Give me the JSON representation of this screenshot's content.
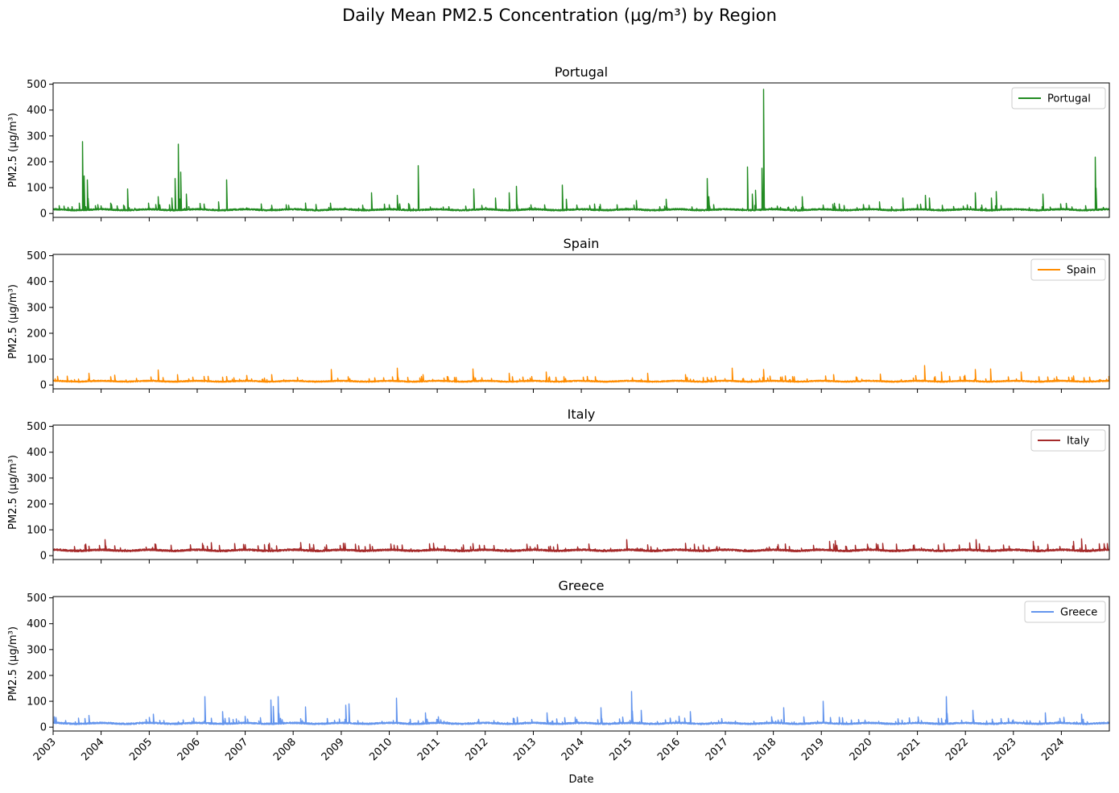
{
  "figure_title": "Daily Mean PM2.5 Concentration (µg/m³) by Region",
  "chart_data": {
    "type": "line",
    "title": "Daily Mean PM2.5 Concentration (µg/m³) by Region",
    "xlabel": "Date",
    "ylabel": "PM2.5 (µg/m³)",
    "xlim": [
      "2003-01-01",
      "2024-12-31"
    ],
    "ylim": [
      -15,
      505
    ],
    "yticks": [
      0,
      100,
      200,
      300,
      400,
      500
    ],
    "xticks": [
      "2003",
      "2004",
      "2005",
      "2006",
      "2007",
      "2008",
      "2009",
      "2010",
      "2011",
      "2012",
      "2013",
      "2014",
      "2015",
      "2016",
      "2017",
      "2018",
      "2019",
      "2020",
      "2021",
      "2022",
      "2023",
      "2024"
    ],
    "sharex": true,
    "legend_position": "upper right",
    "grid": false,
    "panels": [
      {
        "title": "Portugal",
        "legend": "Portugal",
        "color": "#228b22",
        "baseline": 14,
        "noise": 6,
        "peaks": [
          [
            "2003-07-20",
            40
          ],
          [
            "2003-08-10",
            278
          ],
          [
            "2003-08-25",
            145
          ],
          [
            "2003-09-20",
            130
          ],
          [
            "2004-03-15",
            40
          ],
          [
            "2004-07-20",
            95
          ],
          [
            "2005-03-10",
            65
          ],
          [
            "2005-06-20",
            60
          ],
          [
            "2005-07-15",
            135
          ],
          [
            "2005-08-08",
            268
          ],
          [
            "2005-08-25",
            160
          ],
          [
            "2005-10-10",
            75
          ],
          [
            "2006-06-10",
            45
          ],
          [
            "2006-08-10",
            130
          ],
          [
            "2008-10-10",
            40
          ],
          [
            "2009-08-20",
            80
          ],
          [
            "2010-03-05",
            70
          ],
          [
            "2010-08-10",
            185
          ],
          [
            "2011-10-05",
            95
          ],
          [
            "2012-03-20",
            60
          ],
          [
            "2012-07-01",
            80
          ],
          [
            "2012-08-25",
            105
          ],
          [
            "2013-08-10",
            110
          ],
          [
            "2013-09-10",
            55
          ],
          [
            "2015-02-20",
            50
          ],
          [
            "2015-10-10",
            55
          ],
          [
            "2016-08-15",
            135
          ],
          [
            "2016-08-30",
            65
          ],
          [
            "2017-06-18",
            180
          ],
          [
            "2017-07-25",
            75
          ],
          [
            "2017-08-15",
            90
          ],
          [
            "2017-10-16",
            480
          ],
          [
            "2017-10-05",
            175
          ],
          [
            "2018-08-05",
            65
          ],
          [
            "2020-03-20",
            45
          ],
          [
            "2020-09-10",
            60
          ],
          [
            "2021-03-01",
            70
          ],
          [
            "2021-04-01",
            60
          ],
          [
            "2022-03-15",
            80
          ],
          [
            "2022-07-15",
            60
          ],
          [
            "2022-08-20",
            85
          ],
          [
            "2023-08-10",
            75
          ],
          [
            "2024-09-16",
            218
          ]
        ]
      },
      {
        "title": "Spain",
        "legend": "Spain",
        "color": "#ff8c00",
        "baseline": 14,
        "noise": 5,
        "peaks": [
          [
            "2003-10-01",
            45
          ],
          [
            "2004-04-10",
            38
          ],
          [
            "2005-03-10",
            58
          ],
          [
            "2005-08-01",
            40
          ],
          [
            "2006-07-15",
            30
          ],
          [
            "2007-07-20",
            40
          ],
          [
            "2008-10-15",
            60
          ],
          [
            "2010-03-05",
            65
          ],
          [
            "2010-09-15",
            40
          ],
          [
            "2011-10-01",
            62
          ],
          [
            "2012-07-01",
            45
          ],
          [
            "2013-04-10",
            50
          ],
          [
            "2015-05-20",
            45
          ],
          [
            "2016-03-01",
            40
          ],
          [
            "2017-02-20",
            65
          ],
          [
            "2017-10-16",
            60
          ],
          [
            "2018-04-01",
            35
          ],
          [
            "2019-04-01",
            40
          ],
          [
            "2020-03-25",
            42
          ],
          [
            "2021-02-25",
            75
          ],
          [
            "2021-07-01",
            50
          ],
          [
            "2022-03-15",
            60
          ],
          [
            "2022-07-10",
            62
          ],
          [
            "2023-03-01",
            50
          ],
          [
            "2024-04-01",
            35
          ]
        ]
      },
      {
        "title": "Italy",
        "legend": "Italy",
        "color": "#a52a2a",
        "baseline": 20,
        "noise": 7,
        "peaks": [
          [
            "2004-02-01",
            62
          ],
          [
            "2005-02-10",
            45
          ],
          [
            "2006-04-15",
            50
          ],
          [
            "2007-07-01",
            48
          ],
          [
            "2008-05-01",
            45
          ],
          [
            "2009-01-15",
            48
          ],
          [
            "2010-01-15",
            45
          ],
          [
            "2010-12-01",
            48
          ],
          [
            "2013-02-01",
            42
          ],
          [
            "2014-03-01",
            45
          ],
          [
            "2014-12-10",
            62
          ],
          [
            "2016-03-01",
            48
          ],
          [
            "2018-04-01",
            45
          ],
          [
            "2019-03-01",
            55
          ],
          [
            "2019-04-15",
            58
          ],
          [
            "2022-03-20",
            62
          ],
          [
            "2023-06-01",
            55
          ],
          [
            "2024-04-01",
            55
          ],
          [
            "2024-06-01",
            65
          ]
        ]
      },
      {
        "title": "Greece",
        "legend": "Greece",
        "color": "#6495ed",
        "baseline": 14,
        "noise": 6,
        "peaks": [
          [
            "2003-01-10",
            40
          ],
          [
            "2003-10-01",
            45
          ],
          [
            "2005-02-01",
            50
          ],
          [
            "2006-03-01",
            118
          ],
          [
            "2006-07-15",
            60
          ],
          [
            "2007-07-15",
            105
          ],
          [
            "2007-08-01",
            80
          ],
          [
            "2007-09-10",
            118
          ],
          [
            "2008-04-01",
            78
          ],
          [
            "2009-02-01",
            85
          ],
          [
            "2009-03-01",
            90
          ],
          [
            "2010-02-25",
            112
          ],
          [
            "2010-10-01",
            55
          ],
          [
            "2013-04-15",
            55
          ],
          [
            "2014-06-01",
            75
          ],
          [
            "2015-01-20",
            138
          ],
          [
            "2015-04-01",
            65
          ],
          [
            "2016-04-10",
            60
          ],
          [
            "2018-03-20",
            75
          ],
          [
            "2019-01-15",
            100
          ],
          [
            "2021-08-10",
            118
          ],
          [
            "2022-03-01",
            65
          ],
          [
            "2023-09-01",
            55
          ],
          [
            "2024-06-01",
            50
          ]
        ]
      }
    ]
  }
}
